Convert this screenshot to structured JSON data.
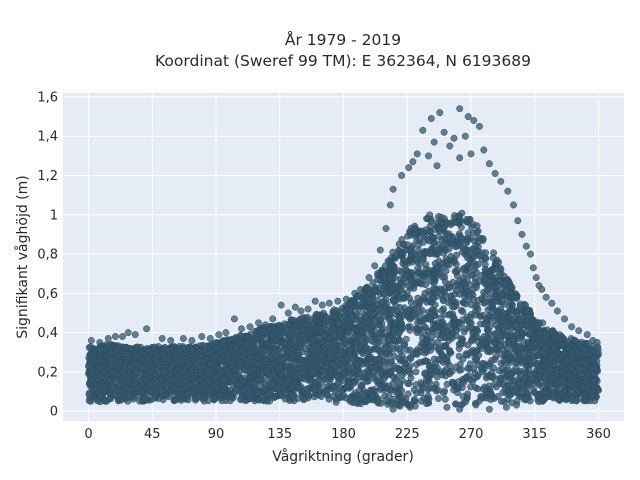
{
  "chart_data": {
    "type": "scatter",
    "title": "År 1979 - 2019",
    "subtitle": "Koordinat (Sweref 99 TM): E 362364, N 6193689",
    "xlabel": "Vågriktning (grader)",
    "ylabel": "Signifikant våghöjd (m)",
    "xlim": [
      -18,
      378
    ],
    "ylim": [
      -0.05,
      1.62
    ],
    "x_ticks": [
      0,
      45,
      90,
      135,
      180,
      225,
      270,
      315,
      360
    ],
    "x_tick_labels": [
      "0",
      "45",
      "90",
      "135",
      "180",
      "225",
      "270",
      "315",
      "360"
    ],
    "y_ticks": [
      0,
      0.2,
      0.4,
      0.6,
      0.8,
      1.0,
      1.2,
      1.4,
      1.6
    ],
    "y_tick_labels": [
      "0",
      "0,2",
      "0,4",
      "0,6",
      "0,8",
      "1",
      "1,2",
      "1,4",
      "1,6"
    ],
    "grid": true,
    "colors": {
      "plot_bg": "#e5ecf6",
      "grid": "#ffffff",
      "marker": "#34586f",
      "marker_edge": "#2a4a5e"
    },
    "series": [
      {
        "marker_opacity": 0.75,
        "envelope": {
          "x": [
            0,
            15,
            30,
            45,
            60,
            75,
            90,
            105,
            120,
            135,
            150,
            165,
            180,
            195,
            210,
            225,
            240,
            255,
            265,
            270,
            285,
            300,
            315,
            330,
            345,
            360
          ],
          "low": [
            0.04,
            0.05,
            0.05,
            0.05,
            0.05,
            0.05,
            0.05,
            0.05,
            0.05,
            0.05,
            0.05,
            0.05,
            0.04,
            0.03,
            0.03,
            0.02,
            0.03,
            0.03,
            0.03,
            0.03,
            0.03,
            0.03,
            0.04,
            0.05,
            0.05,
            0.05
          ],
          "high": [
            0.33,
            0.34,
            0.33,
            0.33,
            0.33,
            0.33,
            0.35,
            0.38,
            0.42,
            0.45,
            0.48,
            0.5,
            0.53,
            0.62,
            0.76,
            0.92,
            1.0,
            1.0,
            1.01,
            1.0,
            0.82,
            0.62,
            0.48,
            0.4,
            0.36,
            0.33
          ]
        },
        "outliers": [
          {
            "x": 242,
            "y": 1.49
          },
          {
            "x": 248,
            "y": 1.52
          },
          {
            "x": 262,
            "y": 1.54
          },
          {
            "x": 268,
            "y": 1.5
          },
          {
            "x": 272,
            "y": 1.48
          },
          {
            "x": 276,
            "y": 1.45
          },
          {
            "x": 236,
            "y": 1.43
          },
          {
            "x": 251,
            "y": 1.42
          },
          {
            "x": 258,
            "y": 1.39
          },
          {
            "x": 266,
            "y": 1.4
          },
          {
            "x": 244,
            "y": 1.37
          },
          {
            "x": 255,
            "y": 1.35
          },
          {
            "x": 279,
            "y": 1.33
          },
          {
            "x": 232,
            "y": 1.31
          },
          {
            "x": 240,
            "y": 1.3
          },
          {
            "x": 262,
            "y": 1.29
          },
          {
            "x": 270,
            "y": 1.31
          },
          {
            "x": 229,
            "y": 1.27
          },
          {
            "x": 283,
            "y": 1.26
          },
          {
            "x": 226,
            "y": 1.24
          },
          {
            "x": 246,
            "y": 1.25
          },
          {
            "x": 287,
            "y": 1.21
          },
          {
            "x": 221,
            "y": 1.2
          },
          {
            "x": 291,
            "y": 1.17
          },
          {
            "x": 215,
            "y": 1.13
          },
          {
            "x": 296,
            "y": 1.12
          },
          {
            "x": 300,
            "y": 1.05
          },
          {
            "x": 303,
            "y": 0.97
          },
          {
            "x": 306,
            "y": 0.9
          },
          {
            "x": 309,
            "y": 0.84
          },
          {
            "x": 312,
            "y": 0.8
          },
          {
            "x": 314,
            "y": 0.73
          },
          {
            "x": 316,
            "y": 0.68
          },
          {
            "x": 318,
            "y": 0.64
          },
          {
            "x": 320,
            "y": 0.62
          },
          {
            "x": 323,
            "y": 0.58
          },
          {
            "x": 327,
            "y": 0.55
          },
          {
            "x": 331,
            "y": 0.51
          },
          {
            "x": 336,
            "y": 0.47
          },
          {
            "x": 341,
            "y": 0.43
          },
          {
            "x": 346,
            "y": 0.41
          },
          {
            "x": 352,
            "y": 0.39
          },
          {
            "x": 356,
            "y": 0.36
          },
          {
            "x": 198,
            "y": 0.68
          },
          {
            "x": 202,
            "y": 0.74
          },
          {
            "x": 206,
            "y": 0.82
          },
          {
            "x": 210,
            "y": 0.93
          },
          {
            "x": 213,
            "y": 1.05
          },
          {
            "x": 188,
            "y": 0.6
          },
          {
            "x": 192,
            "y": 0.62
          },
          {
            "x": 182,
            "y": 0.57
          },
          {
            "x": 176,
            "y": 0.56
          },
          {
            "x": 170,
            "y": 0.55
          },
          {
            "x": 165,
            "y": 0.54
          },
          {
            "x": 160,
            "y": 0.56
          },
          {
            "x": 155,
            "y": 0.52
          },
          {
            "x": 150,
            "y": 0.51
          },
          {
            "x": 146,
            "y": 0.53
          },
          {
            "x": 141,
            "y": 0.5
          },
          {
            "x": 136,
            "y": 0.54
          },
          {
            "x": 130,
            "y": 0.47
          },
          {
            "x": 125,
            "y": 0.44
          },
          {
            "x": 120,
            "y": 0.45
          },
          {
            "x": 114,
            "y": 0.43
          },
          {
            "x": 108,
            "y": 0.42
          },
          {
            "x": 103,
            "y": 0.47
          },
          {
            "x": 97,
            "y": 0.4
          },
          {
            "x": 92,
            "y": 0.39
          },
          {
            "x": 86,
            "y": 0.37
          },
          {
            "x": 80,
            "y": 0.38
          },
          {
            "x": 73,
            "y": 0.36
          },
          {
            "x": 67,
            "y": 0.37
          },
          {
            "x": 58,
            "y": 0.36
          },
          {
            "x": 52,
            "y": 0.37
          },
          {
            "x": 41,
            "y": 0.42
          },
          {
            "x": 33,
            "y": 0.39
          },
          {
            "x": 28,
            "y": 0.4
          },
          {
            "x": 24,
            "y": 0.38
          },
          {
            "x": 19,
            "y": 0.38
          },
          {
            "x": 14,
            "y": 0.37
          },
          {
            "x": 8,
            "y": 0.35
          },
          {
            "x": 2,
            "y": 0.36
          },
          {
            "x": 359,
            "y": 0.35
          },
          {
            "x": 215,
            "y": 0.01
          },
          {
            "x": 227,
            "y": 0.02
          },
          {
            "x": 262,
            "y": 0.01
          },
          {
            "x": 283,
            "y": 0.01
          },
          {
            "x": 295,
            "y": 0.02
          },
          {
            "x": 253,
            "y": 0.02
          }
        ]
      }
    ]
  }
}
